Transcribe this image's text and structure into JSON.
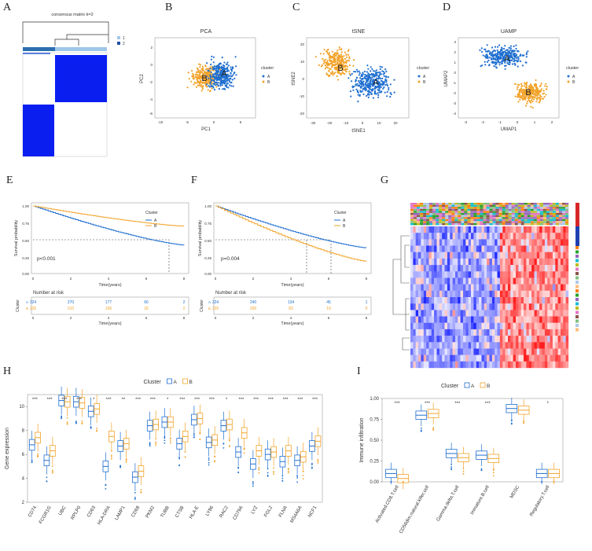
{
  "colors": {
    "blue": "#1f6fd0",
    "orange": "#f2a32a",
    "heat_red": "#d62728",
    "heat_blue": "#2040b0"
  },
  "labels": {
    "A": "A",
    "B": "B",
    "C": "C",
    "D": "D",
    "E": "E",
    "F": "F",
    "G": "G",
    "H": "H",
    "I": "I"
  },
  "panelA": {
    "title": "consensus matrix k=2",
    "legend": [
      "1",
      "2"
    ]
  },
  "panelB": {
    "title": "PCA",
    "xlabel": "PC1",
    "ylabel": "PC2",
    "xticks": [
      "-10",
      "-5",
      "0",
      "5"
    ],
    "yticks": [
      "2",
      "0",
      "-2",
      "-4",
      "-6"
    ],
    "legend_title": "cluster",
    "legend": [
      "A",
      "B"
    ],
    "clusterA": "A",
    "clusterB": "B"
  },
  "panelC": {
    "title": "tSNE",
    "xlabel": "tSNE1",
    "ylabel": "tSNE2",
    "xticks": [
      "-30",
      "-20",
      "-10",
      "0",
      "10",
      "20"
    ],
    "yticks": [
      "20",
      "10",
      "0",
      "-10",
      "-20"
    ],
    "legend_title": "cluster",
    "legend": [
      "A",
      "B"
    ],
    "clusterA": "A",
    "clusterB": "B"
  },
  "panelD": {
    "title": "UAMP",
    "xlabel": "UMAP1",
    "ylabel": "UMAP2",
    "xticks": [
      "-3",
      "-2",
      "-1",
      "0",
      "1",
      "2"
    ],
    "yticks": [
      "3",
      "2",
      "1",
      "0",
      "-1",
      "-2",
      "-3",
      "-4"
    ],
    "legend_title": "cluster",
    "legend": [
      "A",
      "B"
    ],
    "clusterA": "A",
    "clusterB": "B"
  },
  "panelE": {
    "ylabel": "Survival probability",
    "xlabel": "Time(years)",
    "xticks": [
      "0",
      "2",
      "4",
      "6",
      "8"
    ],
    "yticks": [
      "1.00",
      "0.75",
      "0.50",
      "0.25",
      "0.00"
    ],
    "legend_title": "Cluster",
    "legend": [
      "A",
      "B"
    ],
    "pvalue": "p<0.001",
    "risk_title": "Number at risk",
    "risk_ylabel": "Cluster",
    "risk_rows": [
      [
        "324",
        "270",
        "177",
        "66",
        "2"
      ],
      [
        "235",
        "210",
        "106",
        "30",
        "2"
      ]
    ],
    "risk_groups": [
      "A",
      "B"
    ]
  },
  "panelF": {
    "ylabel": "Survival probability",
    "xlabel": "Time(years)",
    "xticks": [
      "0",
      "2",
      "4",
      "6",
      "8"
    ],
    "yticks": [
      "1.00",
      "0.75",
      "0.50",
      "0.25",
      "0.00"
    ],
    "legend_title": "Cluster",
    "legend": [
      "A",
      "B"
    ],
    "pvalue": "p=0.004",
    "risk_title": "Number at risk",
    "risk_ylabel": "Cluster",
    "risk_rows": [
      [
        "324",
        "240",
        "134",
        "45",
        "1"
      ],
      [
        "235",
        "200",
        "83",
        "19",
        "0"
      ]
    ],
    "risk_groups": [
      "A",
      "B"
    ]
  },
  "chart_data": [
    {
      "type": "box",
      "panel": "H",
      "legend_title": "Cluster",
      "legend": [
        "A",
        "B"
      ],
      "ylabel": "Gene expression",
      "ylim": [
        2,
        11
      ],
      "yticks": [
        "2",
        "4",
        "6",
        "8",
        "10"
      ],
      "categories": [
        "CD74",
        "FCGR1G",
        "UBC",
        "RPLP0",
        "CD63",
        "HLA-DRA",
        "LAMP1",
        "CD68",
        "PKM2",
        "TUBB",
        "CTSB",
        "HLA-E",
        "LY86",
        "RAC2",
        "CD79A",
        "LYZ",
        "FGL2",
        "FLNA",
        "MS4A6A",
        "NCF1"
      ],
      "significance": [
        "***",
        "***",
        "***",
        "***",
        "*",
        "***",
        "**",
        "***",
        "***",
        "*",
        "***",
        "***",
        "***",
        "*",
        "***",
        "***",
        "***",
        "***",
        "***",
        "***"
      ],
      "series": [
        {
          "name": "A",
          "medians": [
            6.8,
            5.5,
            10.5,
            10.4,
            9.6,
            5.0,
            6.7,
            4.1,
            8.4,
            8.7,
            6.9,
            8.9,
            7.0,
            8.4,
            6.2,
            5.2,
            6.0,
            5.4,
            5.5,
            6.7
          ]
        },
        {
          "name": "B",
          "medians": [
            7.4,
            6.3,
            10.4,
            10.3,
            9.8,
            7.5,
            6.9,
            4.6,
            8.5,
            8.7,
            7.5,
            9.0,
            7.2,
            8.5,
            7.8,
            6.3,
            6.2,
            6.3,
            5.8,
            7.1
          ]
        }
      ]
    },
    {
      "type": "box",
      "panel": "I",
      "legend_title": "Cluster",
      "legend": [
        "A",
        "B"
      ],
      "ylabel": "Immune infiltration",
      "ylim": [
        0,
        1
      ],
      "yticks": [
        "0.00",
        "0.25",
        "0.50",
        "0.75",
        "1.00"
      ],
      "categories": [
        "Activated.CD8.T.cell",
        "CD56dim.natural.killer.cell",
        "Gamma.delta.T.cell",
        "Immature.B.cell",
        "MDSC",
        "Regulatory.T.cell"
      ],
      "significance": [
        "***",
        "***",
        "***",
        "***",
        "",
        "*"
      ],
      "series": [
        {
          "name": "A",
          "medians": [
            0.1,
            0.8,
            0.34,
            0.32,
            0.88,
            0.1
          ]
        },
        {
          "name": "B",
          "medians": [
            0.04,
            0.82,
            0.29,
            0.28,
            0.86,
            0.1
          ]
        }
      ]
    }
  ]
}
